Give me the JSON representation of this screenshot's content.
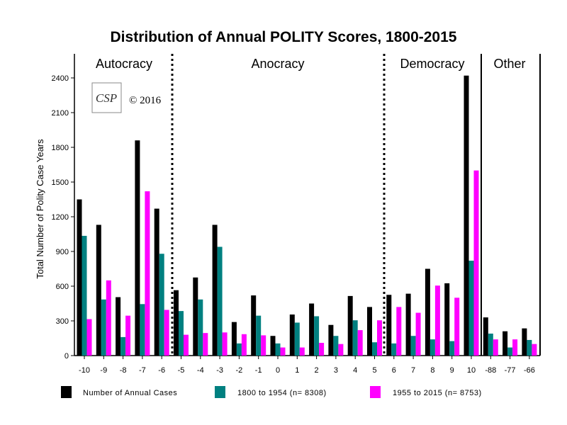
{
  "chart_data": {
    "type": "bar",
    "title": "Distribution of Annual POLITY Scores, 1800-2015",
    "xlabel": "",
    "ylabel": "Total Number of Polity Case Years",
    "ylim": [
      0,
      2500
    ],
    "yticks": [
      0,
      300,
      600,
      900,
      1200,
      1500,
      1800,
      2100,
      2400
    ],
    "grid": false,
    "legend_position": "bottom",
    "categories": [
      "-10",
      "-9",
      "-8",
      "-7",
      "-6",
      "-5",
      "-4",
      "-3",
      "-2",
      "-1",
      "0",
      "1",
      "2",
      "3",
      "4",
      "5",
      "6",
      "7",
      "8",
      "9",
      "10",
      "-88",
      "-77",
      "-66"
    ],
    "series": [
      {
        "name": "Number of Annual Cases",
        "color": "#000000",
        "values": [
          1350,
          1130,
          505,
          1860,
          1270,
          565,
          675,
          1130,
          290,
          520,
          170,
          355,
          450,
          265,
          515,
          420,
          525,
          535,
          750,
          625,
          2420,
          330,
          210,
          235
        ]
      },
      {
        "name": "1800 to 1954 (n= 8308)",
        "color": "#008080",
        "values": [
          1035,
          485,
          160,
          445,
          880,
          385,
          485,
          940,
          105,
          345,
          105,
          285,
          340,
          170,
          305,
          115,
          105,
          170,
          140,
          125,
          820,
          190,
          70,
          135
        ]
      },
      {
        "name": "1955 to 2015 (n= 8753)",
        "color": "#ff00ff",
        "values": [
          315,
          650,
          345,
          1420,
          395,
          180,
          195,
          200,
          185,
          175,
          70,
          70,
          110,
          100,
          220,
          305,
          420,
          370,
          605,
          500,
          1600,
          140,
          140,
          100
        ]
      }
    ],
    "regions": [
      {
        "label": "Autocracy"
      },
      {
        "label": "Anocracy"
      },
      {
        "label": "Democracy"
      },
      {
        "label": "Other"
      }
    ],
    "annotations": {
      "copyright": "© 2016",
      "logo": "CSP"
    }
  }
}
